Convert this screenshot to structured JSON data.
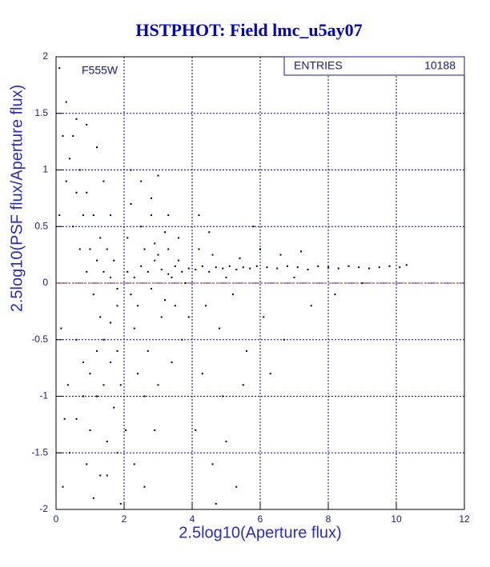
{
  "chart_data": {
    "type": "scatter",
    "title": "HSTPHOT: Field lmc_u5ay07",
    "x_label": "2.5log10(Aperture flux)",
    "y_label": "2.5log10(PSF flux/Aperture flux)",
    "annotation": "F555W",
    "stats_label": "ENTRIES",
    "stats_value": 10188,
    "xlim": [
      0,
      12
    ],
    "ylim": [
      -2,
      2
    ],
    "xticks": [
      0,
      2,
      4,
      6,
      8,
      10,
      12
    ],
    "yticks": [
      -2,
      -1.5,
      -1,
      -0.5,
      0,
      0.5,
      1,
      1.5,
      2
    ],
    "grid": true,
    "grid_color": "#0000cc",
    "reference_line": 0,
    "reference_color": "#dd0000",
    "series": [
      {
        "color": "#000000",
        "x": [
          0.1,
          0.3,
          0.5,
          0.7,
          0.9,
          1.1,
          1.3,
          1.5,
          1.7,
          0.2,
          0.4,
          0.6,
          0.8,
          1.0,
          1.2,
          1.4,
          1.6,
          1.8,
          0.5,
          0.7,
          0.9,
          1.1,
          1.3,
          0.6,
          0.8,
          1.0,
          1.2,
          1.4,
          1.6,
          1.8,
          0.4,
          0.6,
          0.8,
          1.0,
          1.2,
          1.4,
          1.6,
          1.8,
          1.5,
          1.7,
          1.9,
          1.3,
          1.1,
          0.9,
          0.3,
          0.2,
          0.1,
          0.15,
          0.35,
          1.6,
          1.4,
          1.2,
          0.9,
          0.6,
          1.5,
          1.8,
          1.9,
          0.25,
          2.1,
          2.3,
          2.5,
          2.7,
          2.9,
          3.1,
          3.3,
          3.5,
          3.7,
          3.9,
          2.2,
          2.4,
          2.6,
          2.8,
          3.0,
          3.2,
          3.4,
          3.6,
          3.8,
          2.1,
          2.3,
          2.5,
          2.7,
          2.9,
          3.1,
          3.3,
          3.5,
          2.2,
          2.4,
          2.6,
          2.8,
          3.0,
          3.2,
          2.05,
          2.3,
          2.6,
          2.9,
          3.4,
          3.7,
          2.2,
          2.5,
          2.8,
          3.0,
          3.3,
          3.6,
          3.9,
          4.1,
          4.3,
          4.5,
          4.7,
          4.9,
          5.1,
          5.3,
          5.5,
          5.7,
          5.9,
          6.2,
          6.5,
          6.8,
          7.1,
          7.4,
          7.7,
          8.0,
          8.3,
          8.6,
          8.9,
          9.2,
          9.5,
          9.8,
          10.1,
          10.3,
          4.2,
          4.6,
          5.0,
          5.4,
          6.0,
          6.6,
          7.2,
          4.4,
          4.8,
          5.2,
          5.6,
          6.1,
          6.7,
          7.5,
          8.2,
          4.3,
          4.9,
          5.5,
          4.1,
          4.6,
          5.0,
          6.3,
          4.2,
          4.5,
          5.8,
          7.0,
          9.0,
          5.3,
          4.7
        ],
        "y": [
          1.9,
          1.6,
          1.3,
          1.0,
          0.8,
          0.6,
          0.4,
          0.3,
          0.2,
          -1.8,
          -1.5,
          -1.2,
          -1.0,
          -0.8,
          -0.6,
          -0.5,
          -0.35,
          -0.2,
          0.5,
          0.3,
          0.1,
          -0.1,
          -0.3,
          -0.5,
          -0.7,
          0.3,
          0.2,
          0.1,
          0.05,
          -0.05,
          1.1,
          0.8,
          0.6,
          -1.3,
          -1.0,
          -0.9,
          -0.7,
          -0.6,
          -1.4,
          -1.1,
          -0.9,
          -1.7,
          -1.9,
          -1.6,
          0.9,
          1.3,
          0.6,
          -0.4,
          -0.9,
          0.6,
          0.9,
          1.2,
          1.4,
          1.45,
          -1.7,
          -1.5,
          -1.95,
          -1.2,
          0.1,
          0.05,
          0.15,
          0.1,
          0.2,
          0.12,
          0.08,
          0.15,
          0.1,
          0.13,
          -0.1,
          -0.2,
          0.3,
          -0.05,
          0.25,
          -0.15,
          0.05,
          0.2,
          0.0,
          0.4,
          -0.4,
          0.5,
          -0.6,
          0.35,
          -0.3,
          0.3,
          -0.2,
          0.7,
          -0.8,
          -1.0,
          0.6,
          -0.9,
          0.45,
          -1.3,
          -1.6,
          -1.8,
          -1.3,
          -0.7,
          -0.5,
          1.0,
          0.9,
          0.75,
          0.95,
          0.6,
          0.4,
          -0.3,
          0.12,
          0.15,
          0.1,
          0.14,
          0.13,
          0.15,
          0.12,
          0.14,
          0.13,
          0.15,
          0.14,
          0.13,
          0.15,
          0.14,
          0.12,
          0.15,
          0.14,
          0.13,
          0.15,
          0.14,
          0.13,
          0.14,
          0.15,
          0.14,
          0.16,
          0.3,
          0.25,
          0.05,
          0.22,
          0.3,
          0.25,
          0.28,
          -0.2,
          -0.4,
          -0.1,
          -0.6,
          -0.3,
          -0.5,
          -0.2,
          -0.1,
          -0.8,
          -1.0,
          -0.9,
          -1.3,
          -1.6,
          -1.4,
          -0.8,
          0.6,
          0.45,
          0.5,
          0.05,
          0.0,
          -1.8,
          -1.95
        ]
      }
    ]
  }
}
